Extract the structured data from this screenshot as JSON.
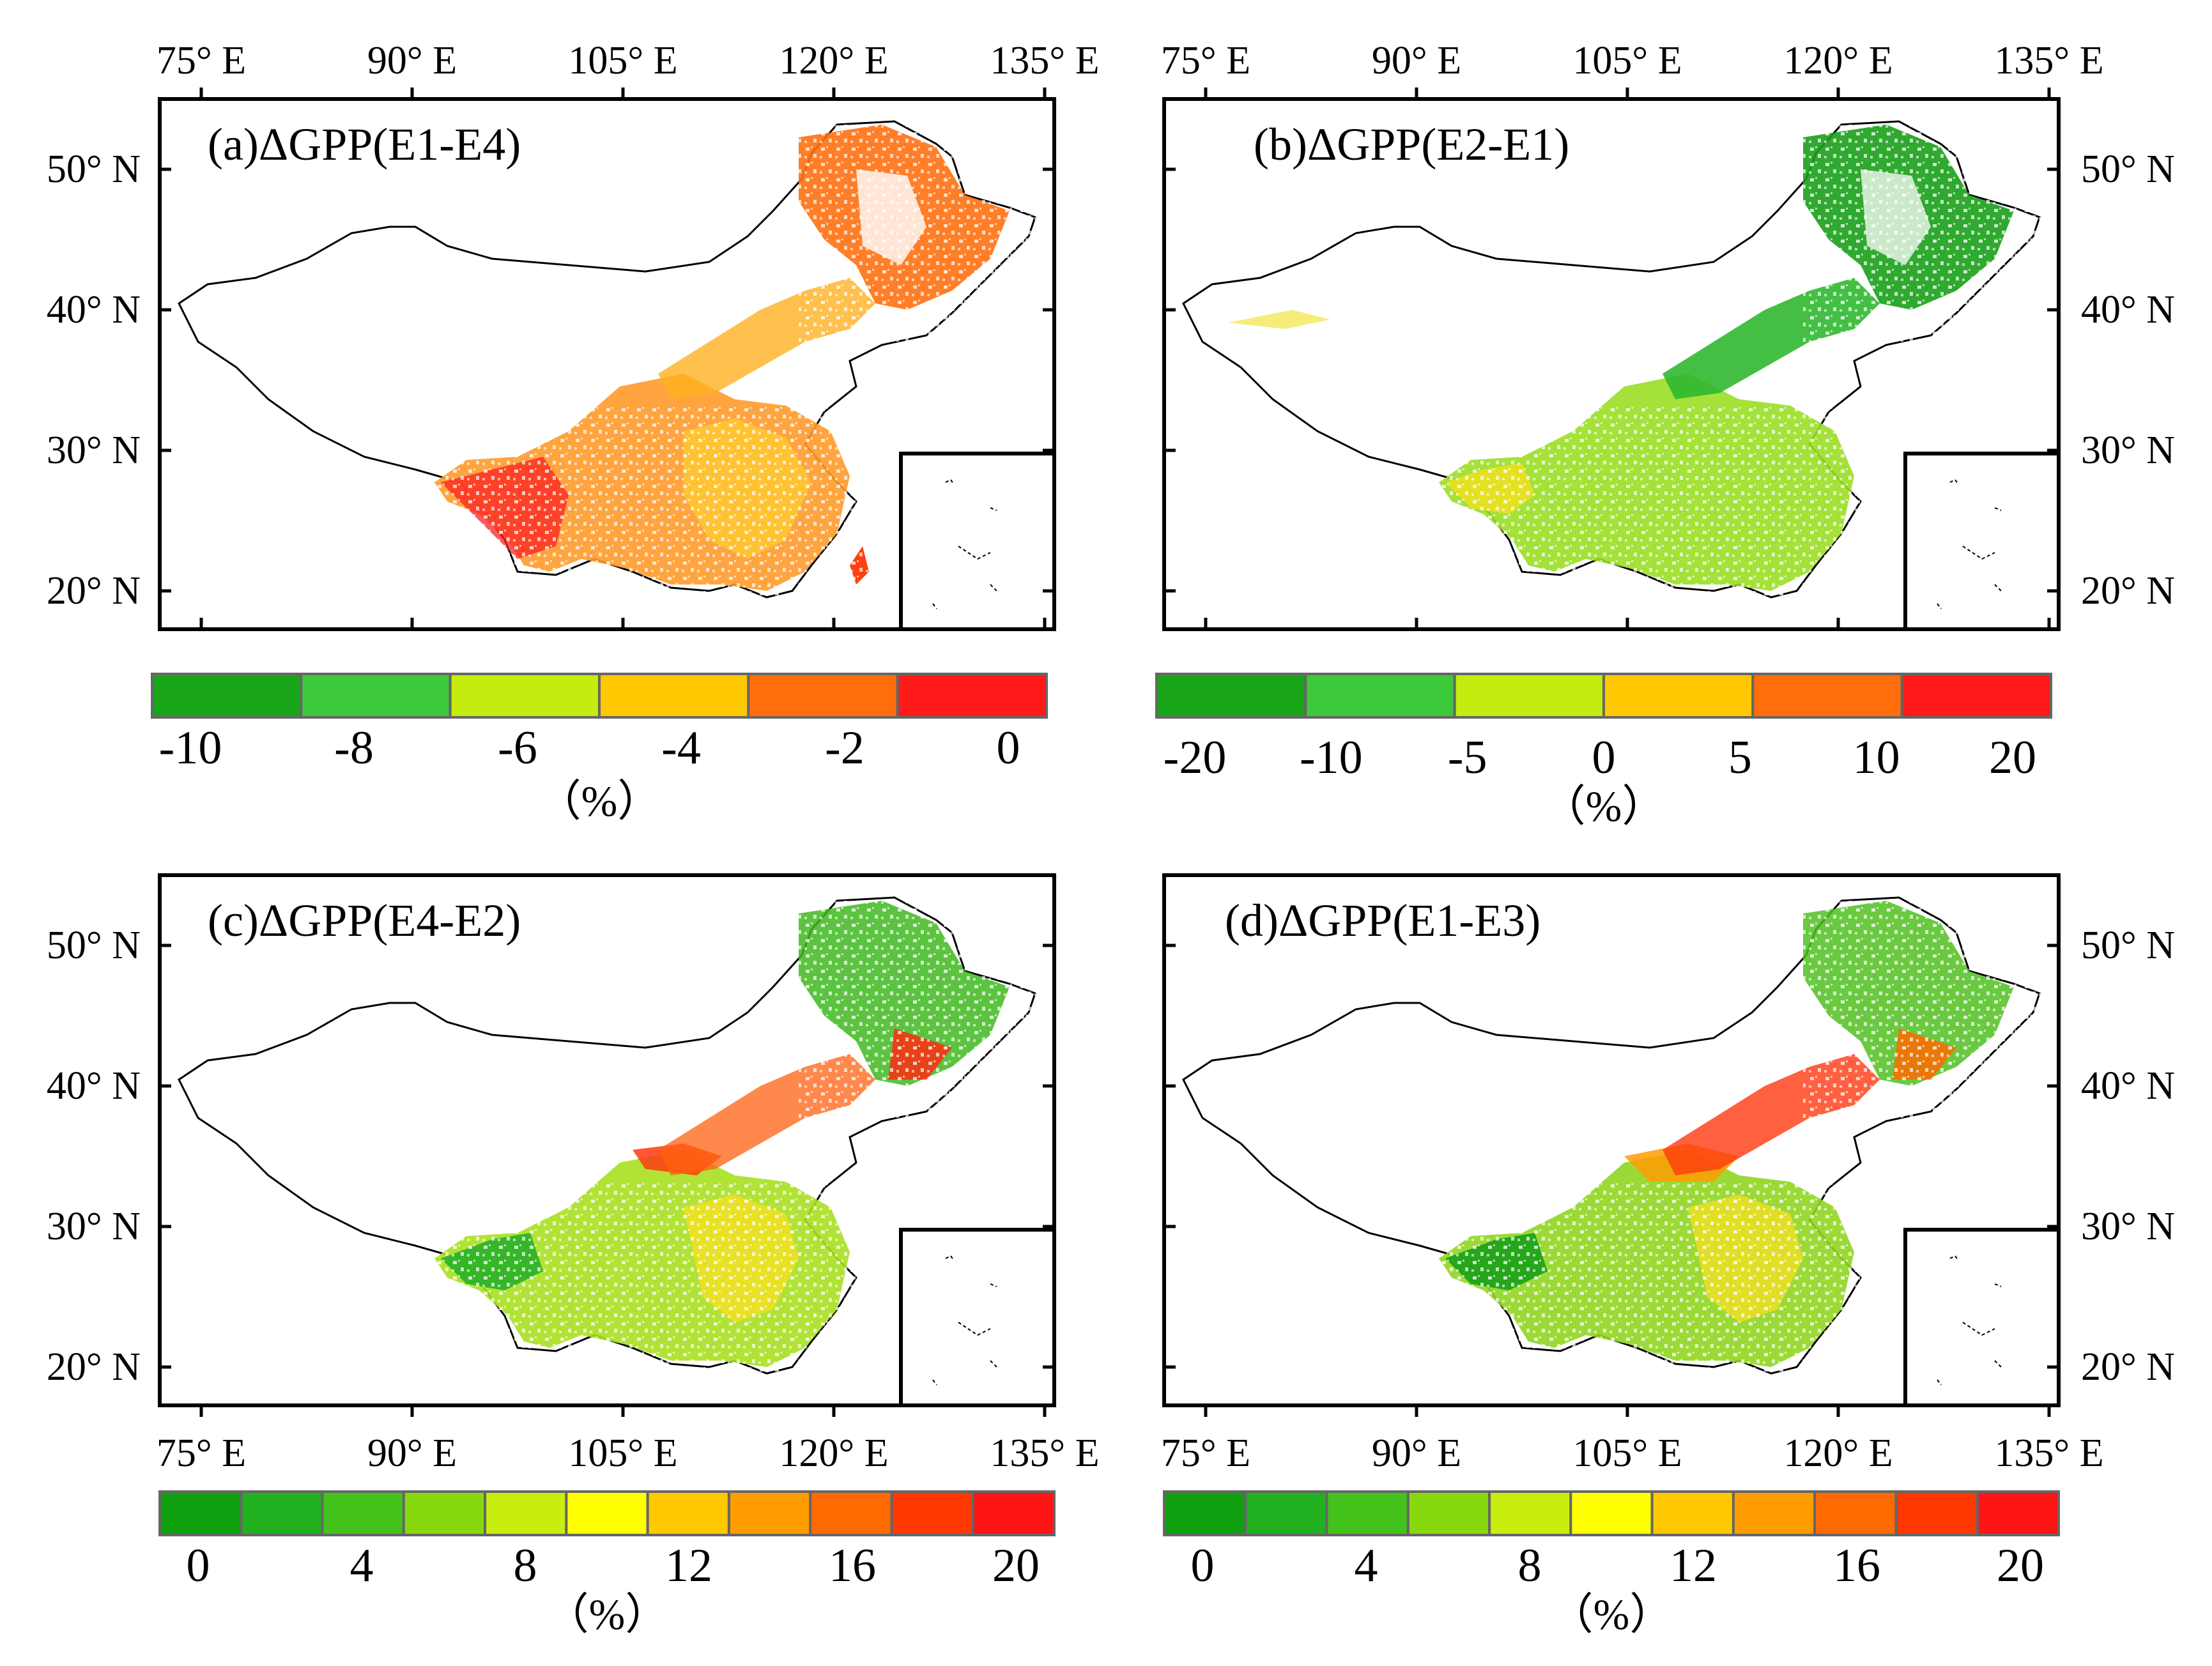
{
  "figure": {
    "panels": [
      {
        "id": "a",
        "title": "(a)ΔGPP(E1-E4)",
        "lon_labels": [
          "75° E",
          "90° E",
          "105° E",
          "120° E",
          "135° E"
        ],
        "lat_labels": [
          "50° N",
          "40° N",
          "30° N",
          "20° N"
        ],
        "colorbar": {
          "colors": [
            "#18a518",
            "#3cc93c",
            "#c4ec0e",
            "#ffc800",
            "#ff6e0a",
            "#ff1a1a"
          ],
          "labels": [
            "-10",
            "-8",
            "-6",
            "-4",
            "-2",
            "0"
          ],
          "unit": "（%）"
        }
      },
      {
        "id": "b",
        "title": "(b)ΔGPP(E2-E1)",
        "lon_labels": [
          "75° E",
          "90° E",
          "105° E",
          "120° E",
          "135° E"
        ],
        "lat_labels": [
          "50° N",
          "40° N",
          "30° N",
          "20° N"
        ],
        "colorbar": {
          "colors": [
            "#18a518",
            "#3cc93c",
            "#c4ec0e",
            "#ffc800",
            "#ff6e0a",
            "#ff1a1a"
          ],
          "labels": [
            "-20",
            "-10",
            "-5",
            "0",
            "5",
            "10",
            "20"
          ],
          "unit": "（%）"
        }
      },
      {
        "id": "c",
        "title": "(c)ΔGPP(E4-E2)",
        "lon_labels": [
          "75° E",
          "90° E",
          "105° E",
          "120° E",
          "135° E"
        ],
        "lat_labels": [
          "50° N",
          "40° N",
          "30° N",
          "20° N"
        ],
        "colorbar": {
          "colors": [
            "#0ea00e",
            "#20b020",
            "#44c21c",
            "#88d810",
            "#c8ee10",
            "#ffff00",
            "#ffc800",
            "#ff9c00",
            "#ff6a00",
            "#ff3800",
            "#ff1414"
          ],
          "labels": [
            "0",
            "4",
            "8",
            "12",
            "16",
            "20"
          ],
          "unit": "（%）"
        }
      },
      {
        "id": "d",
        "title": "(d)ΔGPP(E1-E3)",
        "lon_labels": [
          "75° E",
          "90° E",
          "105° E",
          "120° E",
          "135° E"
        ],
        "lat_labels": [
          "50° N",
          "40° N",
          "30° N",
          "20° N"
        ],
        "colorbar": {
          "colors": [
            "#0ea00e",
            "#20b020",
            "#44c21c",
            "#88d810",
            "#c8ee10",
            "#ffff00",
            "#ffc800",
            "#ff9c00",
            "#ff6a00",
            "#ff3800",
            "#ff1414"
          ],
          "labels": [
            "0",
            "4",
            "8",
            "12",
            "16",
            "20"
          ],
          "unit": "（%）"
        }
      }
    ]
  }
}
